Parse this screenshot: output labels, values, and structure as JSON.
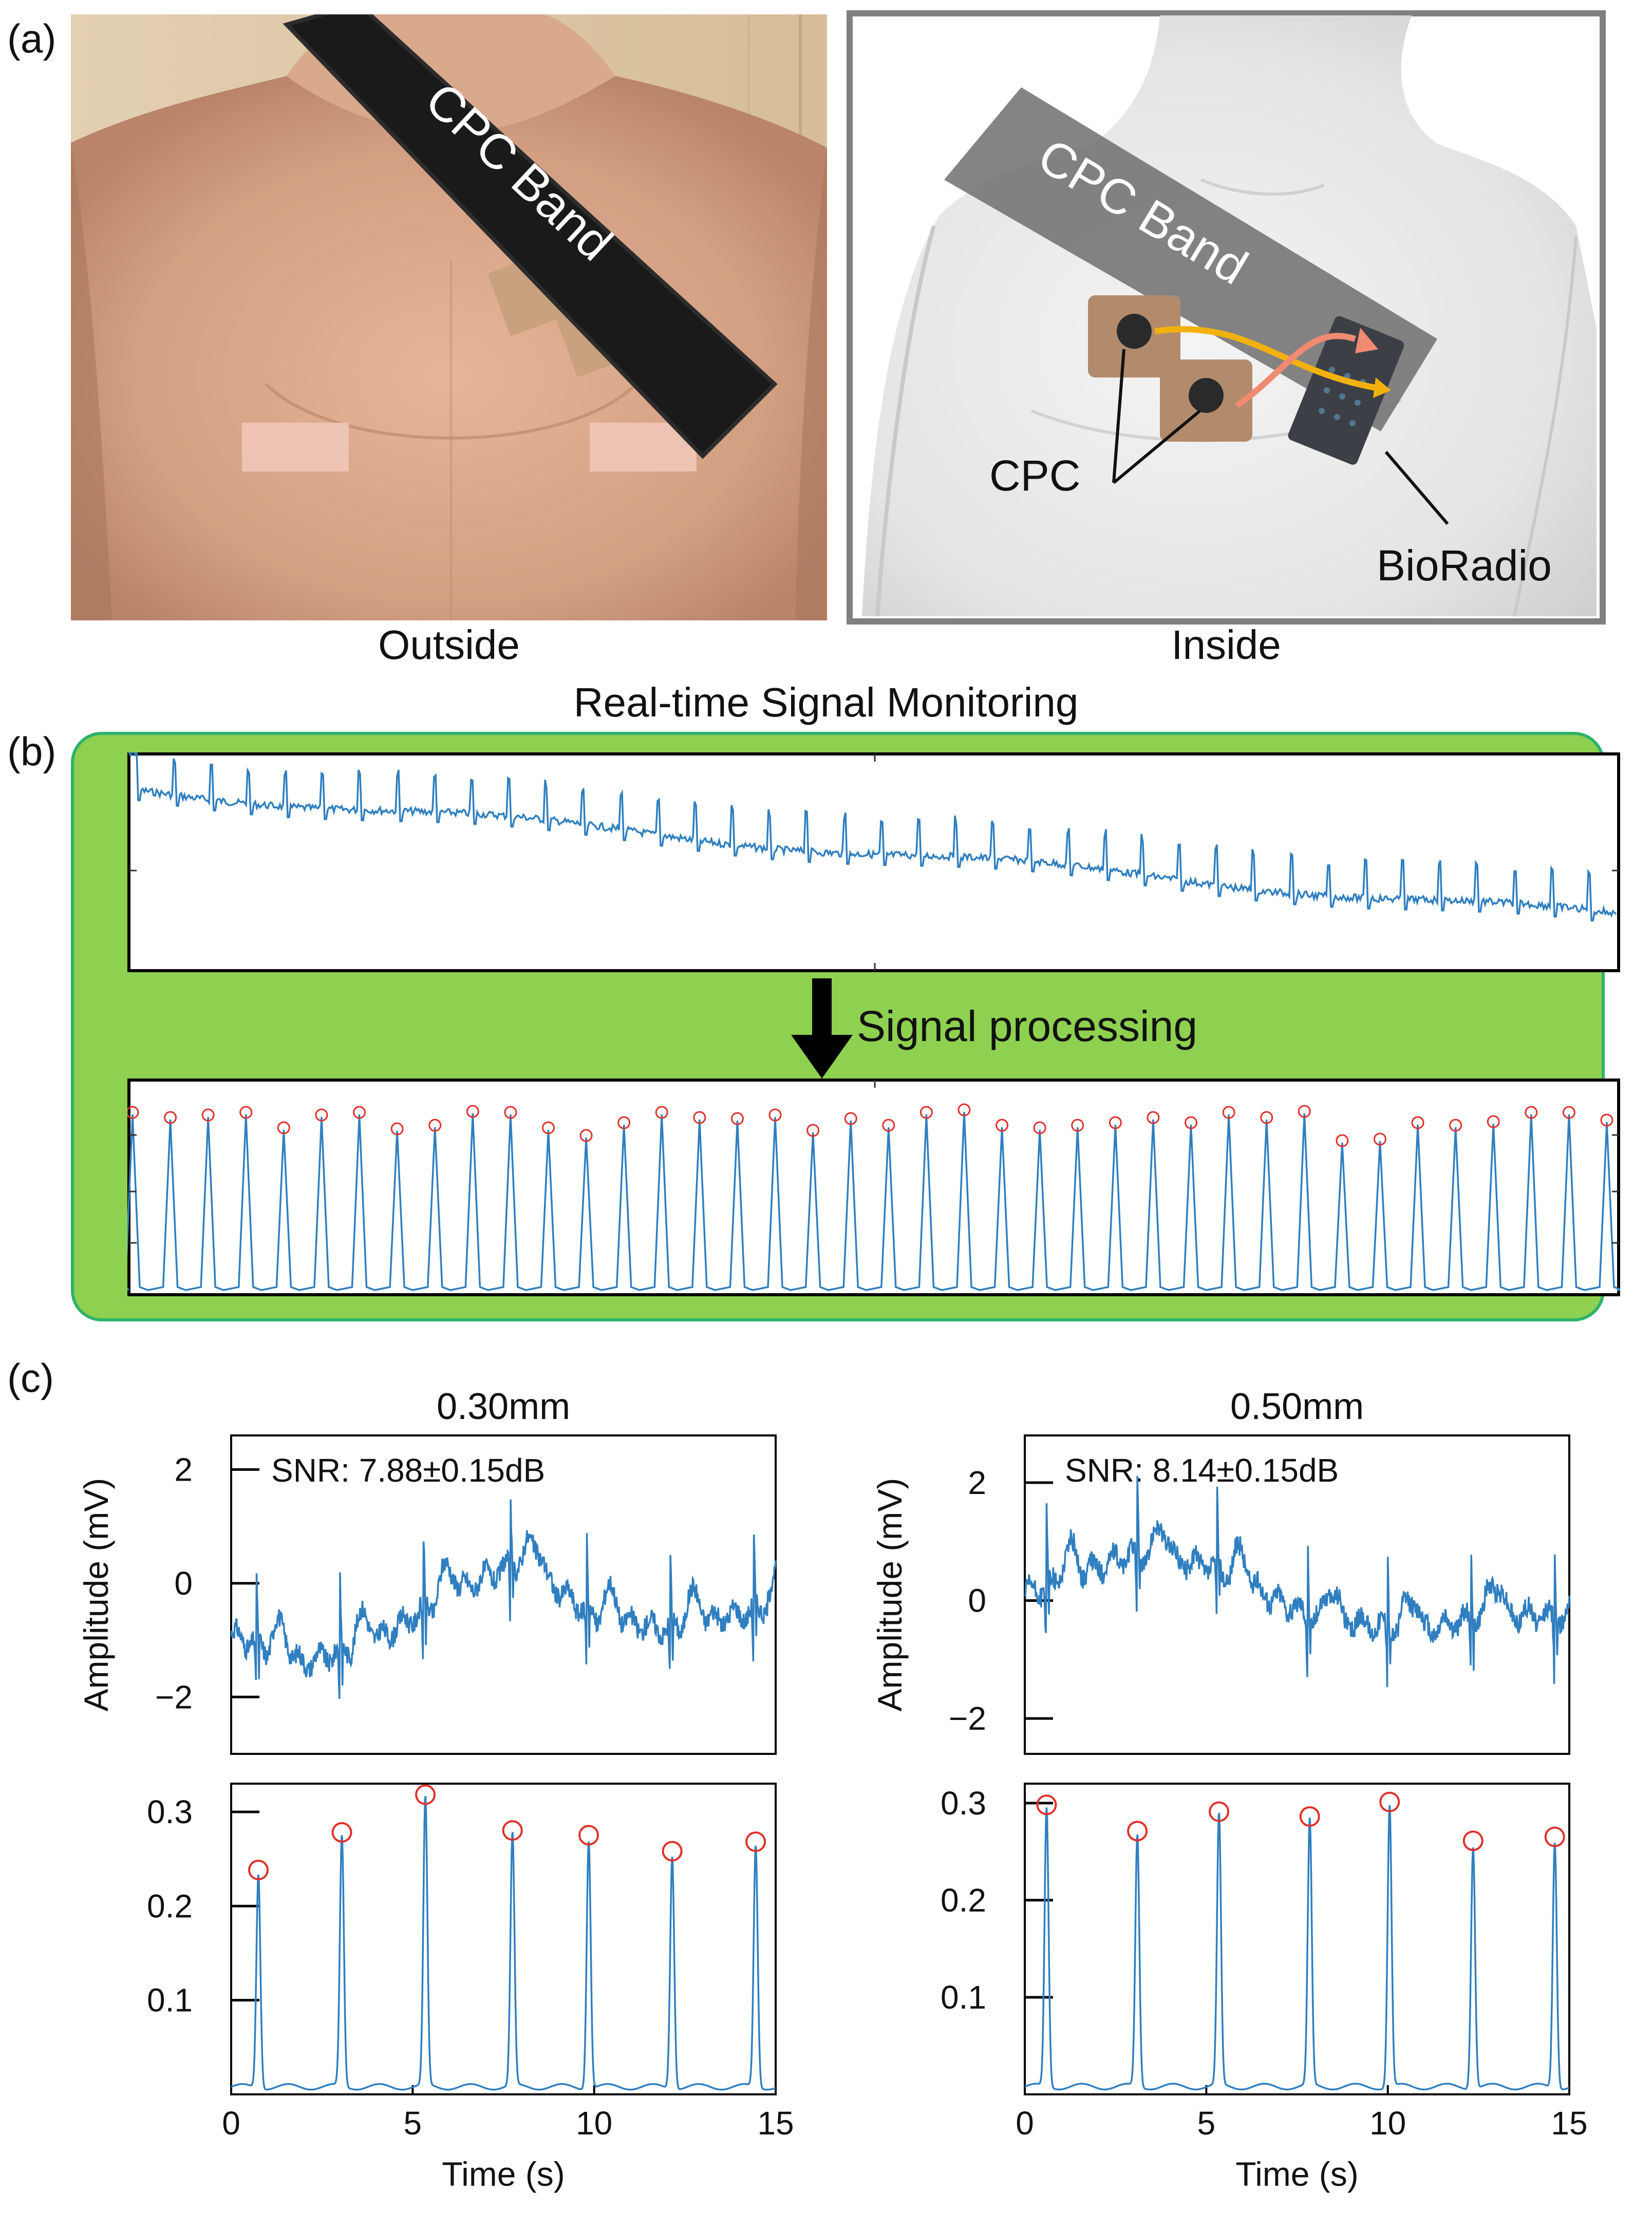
{
  "panels": {
    "a": {
      "label": "(a)",
      "outside": {
        "caption": "Outside",
        "band_text": "CPC Band"
      },
      "inside": {
        "caption": "Inside",
        "band_text": "CPC Band",
        "cpc_label": "CPC",
        "bioradio_label": "BioRadio"
      }
    },
    "b": {
      "label": "(b)",
      "title": "Real-time Signal Monitoring",
      "arrow_label": "Signal processing",
      "colors": {
        "panel_fill": "#8ed050",
        "panel_border": "#2db36b",
        "trace": "#2f7fc0",
        "peak_marker": "#e0302a"
      },
      "raw_icon": "raw-ecg-trace",
      "processed_icon": "processed-ecg-with-peaks"
    },
    "c": {
      "label": "(c)",
      "colors": {
        "trace": "#2f7fc0",
        "peak_marker": "#e0302a"
      }
    }
  },
  "chart_data": [
    {
      "type": "line",
      "id": "c-030-raw",
      "title": "0.30mm",
      "annotation": "SNR: 7.88±0.15dB",
      "ylabel": "Amplitude (mV)",
      "xlim": [
        0,
        15
      ],
      "ylim": [
        -3,
        2.6
      ],
      "yticks": [
        {
          "v": 2,
          "label": "2"
        },
        {
          "v": 0,
          "label": "0"
        },
        {
          "v": -2,
          "label": "−2"
        }
      ],
      "beats": [
        0.7,
        3.0,
        5.3,
        7.7,
        9.8,
        12.1,
        14.4
      ],
      "baseline": [
        [
          0,
          -0.9
        ],
        [
          2,
          -1.4
        ],
        [
          4,
          -1.0
        ],
        [
          6,
          -0.2
        ],
        [
          8,
          0.4
        ],
        [
          10,
          -0.6
        ],
        [
          12,
          -0.8
        ],
        [
          15,
          -0.4
        ]
      ]
    },
    {
      "type": "line",
      "id": "c-030-processed",
      "xlabel": "Time (s)",
      "xlim": [
        0,
        15
      ],
      "ylim": [
        0,
        0.33
      ],
      "xticks": [
        {
          "v": 0,
          "label": "0"
        },
        {
          "v": 5,
          "label": "5"
        },
        {
          "v": 10,
          "label": "10"
        },
        {
          "v": 15,
          "label": "15"
        }
      ],
      "yticks": [
        {
          "v": 0.3,
          "label": "0.3"
        },
        {
          "v": 0.2,
          "label": "0.2"
        },
        {
          "v": 0.1,
          "label": "0.1"
        }
      ],
      "peaks": [
        {
          "x": 0.75,
          "y": 0.235
        },
        {
          "x": 3.05,
          "y": 0.275
        },
        {
          "x": 5.35,
          "y": 0.315
        },
        {
          "x": 7.75,
          "y": 0.277
        },
        {
          "x": 9.85,
          "y": 0.272
        },
        {
          "x": 12.15,
          "y": 0.255
        },
        {
          "x": 14.45,
          "y": 0.265
        }
      ]
    },
    {
      "type": "line",
      "id": "c-050-raw",
      "title": "0.50mm",
      "annotation": "SNR: 8.14±0.15dB",
      "ylabel": "Amplitude (mV)",
      "xlim": [
        0,
        15
      ],
      "ylim": [
        -2.6,
        2.8
      ],
      "yticks": [
        {
          "v": 2,
          "label": "2"
        },
        {
          "v": 0,
          "label": "0"
        },
        {
          "v": -2,
          "label": "−2"
        }
      ],
      "beats": [
        0.6,
        3.1,
        5.3,
        7.8,
        10.0,
        12.3,
        14.6
      ],
      "baseline": [
        [
          0,
          0.1
        ],
        [
          3,
          0.8
        ],
        [
          5,
          0.6
        ],
        [
          8,
          -0.3
        ],
        [
          11,
          -0.5
        ],
        [
          13,
          -0.2
        ],
        [
          15,
          -0.3
        ]
      ]
    },
    {
      "type": "line",
      "id": "c-050-processed",
      "xlabel": "Time (s)",
      "xlim": [
        0,
        15
      ],
      "ylim": [
        0,
        0.32
      ],
      "xticks": [
        {
          "v": 0,
          "label": "0"
        },
        {
          "v": 5,
          "label": "5"
        },
        {
          "v": 10,
          "label": "10"
        },
        {
          "v": 15,
          "label": "15"
        }
      ],
      "yticks": [
        {
          "v": 0.3,
          "label": "0.3"
        },
        {
          "v": 0.2,
          "label": "0.2"
        },
        {
          "v": 0.1,
          "label": "0.1"
        }
      ],
      "peaks": [
        {
          "x": 0.6,
          "y": 0.295
        },
        {
          "x": 3.1,
          "y": 0.268
        },
        {
          "x": 5.35,
          "y": 0.288
        },
        {
          "x": 7.85,
          "y": 0.283
        },
        {
          "x": 10.05,
          "y": 0.298
        },
        {
          "x": 12.35,
          "y": 0.258
        },
        {
          "x": 14.6,
          "y": 0.262
        }
      ]
    }
  ]
}
